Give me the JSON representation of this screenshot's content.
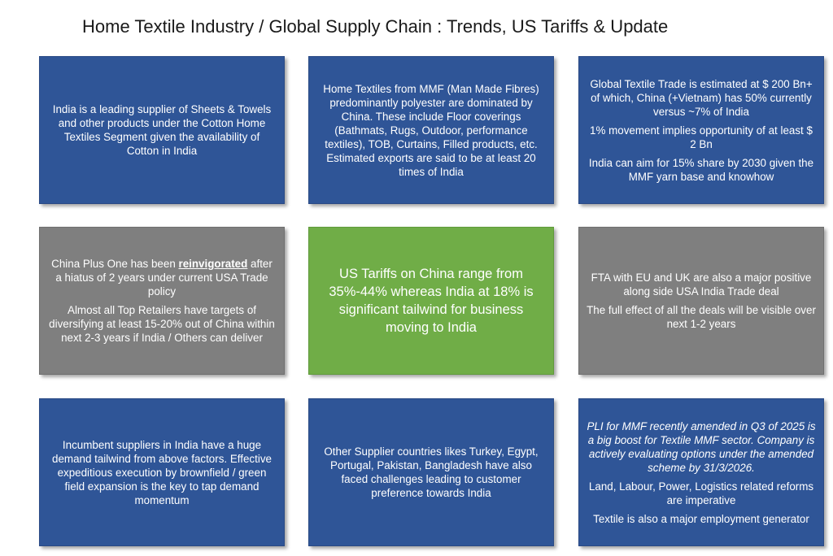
{
  "title": "Home Textile Industry / Global Supply Chain : Trends, US Tariffs & Update",
  "boxes": {
    "india_supplier": {
      "text": "India is a leading supplier of Sheets & Towels and other products under the Cotton Home Textiles Segment given the availability of Cotton in India"
    },
    "mmf_china": {
      "text": "Home Textiles from MMF (Man Made Fibres) predominantly polyester are dominated by China. These include Floor coverings (Bathmats, Rugs, Outdoor, performance textiles), TOB, Curtains, Filled products, etc. Estimated exports are said to be at least 20 times of India"
    },
    "global_trade": {
      "p1": "Global Textile Trade is estimated at $ 200 Bn+ of which, China (+Vietnam) has 50% currently versus ~7% of India",
      "p2": "1% movement implies opportunity of at least $ 2 Bn",
      "p3": "India can aim for 15% share by 2030 given the MMF yarn base and knowhow"
    },
    "china_plus_one": {
      "p1_before": "China Plus One has been ",
      "p1_emph": "reinvigorated",
      "p1_after": " after a hiatus of 2 years under current USA Trade policy",
      "p2": "Almost all Top Retailers have targets of diversifying at least 15-20% out of China within next 2-3 years if India / Others can deliver"
    },
    "us_tariffs": {
      "text": "US Tariffs on China range from 35%-44% whereas India at 18% is significant tailwind for business moving to India"
    },
    "fta": {
      "p1": "FTA with EU and UK are also a major positive along side USA India Trade deal",
      "p2": "The full effect of all the deals will be visible over next 1-2 years"
    },
    "incumbent": {
      "text": "Incumbent suppliers in India have a huge demand tailwind from above factors. Effective expeditious execution by brownfield / green field expansion is the key to tap demand momentum"
    },
    "other_suppliers": {
      "text": "Other Supplier countries likes Turkey, Egypt, Portugal, Pakistan, Bangladesh have also faced challenges leading to customer preference towards India"
    },
    "pli": {
      "p1": "PLI for MMF recently amended in Q3 of 2025 is a big boost for Textile MMF sector. Company is actively evaluating options under the amended scheme by 31/3/2026.",
      "p2": "Land, Labour, Power, Logistics related reforms are imperative",
      "p3": "Textile is also a major employment generator"
    }
  },
  "colors": {
    "blue_box": "#2f5597",
    "grey_box": "#7f7f7f",
    "green_box": "#70ad47",
    "text": "#ffffff"
  }
}
